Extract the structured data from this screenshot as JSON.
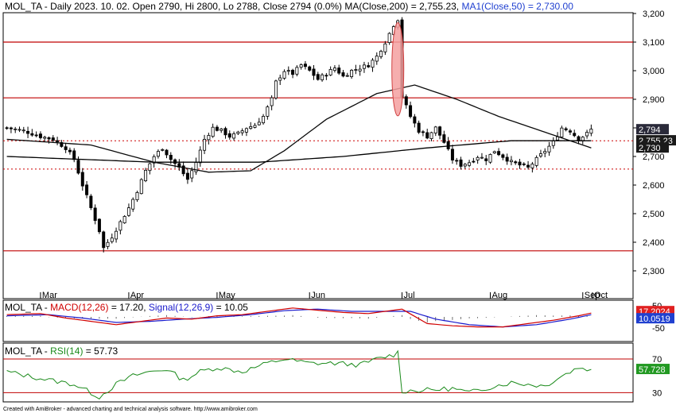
{
  "colors": {
    "background": "#ffffff",
    "frame": "#000000",
    "up_candle": "#ffffff",
    "down_candle": "#000000",
    "red_line": "#c00000",
    "dotted_red": "#cc0000",
    "ma200": "#000000",
    "ma50": "#0a0a0a",
    "ellipse_fill": "#f4a0a0",
    "ellipse_stroke": "#d04040",
    "macd": "#d00000",
    "signal": "#1a1acc",
    "rsi": "#1a8a1a",
    "badge_dark": "#1a1a1a",
    "badge_red": "#e02020",
    "badge_blue": "#2040d0"
  },
  "price_panel": {
    "legend": {
      "prefix": "MOL_TA - Daily 2023. 10. 02. Open 2790, Hi 2800, Lo 2788, Close 2794 (0.0%) MA(Close,200) = 2,755.23, ",
      "ma50": "MA1(Close,50) = 2,730.00"
    },
    "y_ticks": [
      "3,200",
      "3,100",
      "3,000",
      "2,900",
      "2,800",
      "2,700",
      "2,600",
      "2,500",
      "2,400",
      "2,300"
    ],
    "badges": [
      "2,794",
      "2,755.23",
      "2,730"
    ],
    "x_ticks": [
      "Mar",
      "Apr",
      "May",
      "Jun",
      "Jul",
      "Aug",
      "Sep",
      "Oct"
    ]
  },
  "macd_panel": {
    "legend": {
      "prefix": "MOL_TA - ",
      "macd": "MACD(12,26)",
      "macd_value": " = 17.20, ",
      "signal": "Signal(12,26,9)",
      "signal_value": " = 10.05"
    },
    "y_ticks": [
      "50",
      "-50"
    ],
    "badges": [
      "17.2024",
      "10.0519"
    ]
  },
  "rsi_panel": {
    "legend": {
      "prefix": "MOL_TA - ",
      "rsi": "RSI(14)",
      "rsi_value": " = 57.73"
    },
    "y_ticks": [
      "70",
      "30"
    ],
    "badges": [
      "57.728"
    ]
  },
  "footer": "Created with AmiBroker - advanced charting and technical analysis software. http://www.amibroker.com",
  "chart_data": [
    {
      "type": "candlestick",
      "title": "MOL_TA - Daily 2023. 10. 02. Open 2790, Hi 2800, Lo 2788, Close 2794 (0.0%) MA(Close,200) = 2,755.23, MA1(Close,50) = 2,730.00",
      "x_labels": [
        "Mar",
        "Apr",
        "May",
        "Jun",
        "Jul",
        "Aug",
        "Sep",
        "Oct"
      ],
      "ylim": [
        2225,
        3230
      ],
      "horizontal_lines": [
        3100,
        2905,
        2370
      ],
      "dotted_lines": [
        2755,
        2656
      ],
      "close_anchors": [
        [
          0,
          2800
        ],
        [
          4,
          2790
        ],
        [
          8,
          2770
        ],
        [
          11,
          2760
        ],
        [
          14,
          2730
        ],
        [
          16,
          2690
        ],
        [
          18,
          2600
        ],
        [
          20,
          2520
        ],
        [
          22,
          2440
        ],
        [
          23,
          2380
        ],
        [
          25,
          2420
        ],
        [
          27,
          2470
        ],
        [
          29,
          2520
        ],
        [
          31,
          2580
        ],
        [
          33,
          2650
        ],
        [
          35,
          2700
        ],
        [
          37,
          2730
        ],
        [
          39,
          2690
        ],
        [
          41,
          2660
        ],
        [
          43,
          2620
        ],
        [
          45,
          2680
        ],
        [
          47,
          2760
        ],
        [
          49,
          2800
        ],
        [
          51,
          2790
        ],
        [
          53,
          2770
        ],
        [
          55,
          2780
        ],
        [
          57,
          2800
        ],
        [
          59,
          2810
        ],
        [
          61,
          2840
        ],
        [
          63,
          2900
        ],
        [
          64,
          2960
        ],
        [
          66,
          3000
        ],
        [
          68,
          2990
        ],
        [
          70,
          3020
        ],
        [
          72,
          3000
        ],
        [
          74,
          2970
        ],
        [
          76,
          2990
        ],
        [
          78,
          3010
        ],
        [
          80,
          2980
        ],
        [
          82,
          3000
        ],
        [
          84,
          3010
        ],
        [
          86,
          3020
        ],
        [
          88,
          3050
        ],
        [
          90,
          3100
        ],
        [
          92,
          3160
        ],
        [
          93,
          3180
        ],
        [
          94,
          2910
        ],
        [
          96,
          2840
        ],
        [
          98,
          2790
        ],
        [
          100,
          2770
        ],
        [
          102,
          2800
        ],
        [
          104,
          2750
        ],
        [
          106,
          2690
        ],
        [
          108,
          2670
        ],
        [
          110,
          2680
        ],
        [
          112,
          2700
        ],
        [
          114,
          2690
        ],
        [
          116,
          2720
        ],
        [
          118,
          2700
        ],
        [
          120,
          2680
        ],
        [
          122,
          2670
        ],
        [
          124,
          2660
        ],
        [
          126,
          2690
        ],
        [
          128,
          2720
        ],
        [
          130,
          2750
        ],
        [
          132,
          2800
        ],
        [
          134,
          2790
        ],
        [
          136,
          2760
        ],
        [
          138,
          2780
        ],
        [
          139,
          2794
        ]
      ],
      "ma200_anchors": [
        [
          0,
          2700
        ],
        [
          35,
          2680
        ],
        [
          60,
          2680
        ],
        [
          80,
          2700
        ],
        [
          100,
          2730
        ],
        [
          120,
          2755
        ],
        [
          139,
          2755
        ]
      ],
      "ma50_anchors": [
        [
          0,
          2760
        ],
        [
          20,
          2740
        ],
        [
          35,
          2680
        ],
        [
          48,
          2645
        ],
        [
          58,
          2650
        ],
        [
          66,
          2720
        ],
        [
          76,
          2830
        ],
        [
          88,
          2920
        ],
        [
          97,
          2950
        ],
        [
          107,
          2900
        ],
        [
          117,
          2840
        ],
        [
          127,
          2790
        ],
        [
          135,
          2750
        ],
        [
          139,
          2730
        ]
      ],
      "highlight_ellipse": {
        "x_index": 93,
        "center_value": 3005,
        "half_height_value": 163
      }
    },
    {
      "type": "line",
      "title": "MACD(12,26) = 17.20, Signal(12,26,9) = 10.05",
      "ylim": [
        -75,
        75
      ],
      "series": [
        {
          "name": "MACD(12,26)",
          "anchors": [
            [
              0,
              10
            ],
            [
              8,
              15
            ],
            [
              14,
              -5
            ],
            [
              20,
              -20
            ],
            [
              26,
              -35
            ],
            [
              32,
              -20
            ],
            [
              38,
              -5
            ],
            [
              44,
              -10
            ],
            [
              50,
              5
            ],
            [
              56,
              10
            ],
            [
              62,
              25
            ],
            [
              68,
              40
            ],
            [
              74,
              30
            ],
            [
              80,
              20
            ],
            [
              86,
              15
            ],
            [
              92,
              30
            ],
            [
              94,
              35
            ],
            [
              100,
              -30
            ],
            [
              106,
              -40
            ],
            [
              112,
              -45
            ],
            [
              118,
              -45
            ],
            [
              124,
              -30
            ],
            [
              130,
              -15
            ],
            [
              136,
              5
            ],
            [
              139,
              17.2
            ]
          ]
        },
        {
          "name": "Signal(12,26,9)",
          "anchors": [
            [
              0,
              5
            ],
            [
              10,
              10
            ],
            [
              18,
              -5
            ],
            [
              26,
              -25
            ],
            [
              34,
              -20
            ],
            [
              42,
              -10
            ],
            [
              50,
              -2
            ],
            [
              58,
              10
            ],
            [
              66,
              28
            ],
            [
              74,
              35
            ],
            [
              82,
              25
            ],
            [
              90,
              25
            ],
            [
              96,
              25
            ],
            [
              102,
              -10
            ],
            [
              110,
              -35
            ],
            [
              118,
              -45
            ],
            [
              126,
              -35
            ],
            [
              134,
              -10
            ],
            [
              139,
              10.05
            ]
          ]
        }
      ]
    },
    {
      "type": "line",
      "title": "RSI(14) = 57.73",
      "ylim": [
        20,
        88
      ],
      "series": [
        {
          "name": "RSI(14)",
          "anchors": [
            [
              0,
              55
            ],
            [
              5,
              50
            ],
            [
              10,
              45
            ],
            [
              16,
              40
            ],
            [
              20,
              30
            ],
            [
              22,
              25
            ],
            [
              26,
              40
            ],
            [
              30,
              50
            ],
            [
              34,
              55
            ],
            [
              38,
              58
            ],
            [
              42,
              45
            ],
            [
              46,
              55
            ],
            [
              50,
              60
            ],
            [
              56,
              55
            ],
            [
              62,
              65
            ],
            [
              66,
              70
            ],
            [
              72,
              65
            ],
            [
              78,
              65
            ],
            [
              84,
              63
            ],
            [
              88,
              70
            ],
            [
              92,
              75
            ],
            [
              93,
              78
            ],
            [
              94,
              32
            ],
            [
              100,
              33
            ],
            [
              106,
              35
            ],
            [
              110,
              30
            ],
            [
              116,
              38
            ],
            [
              120,
              42
            ],
            [
              124,
              40
            ],
            [
              128,
              38
            ],
            [
              132,
              50
            ],
            [
              136,
              60
            ],
            [
              139,
              57.73
            ]
          ]
        }
      ]
    }
  ]
}
